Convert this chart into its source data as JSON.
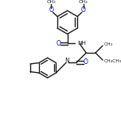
{
  "bg_color": "#ffffff",
  "lc": "#1a1a1a",
  "oc": "#0000cc",
  "lw": 1.0,
  "figsize": [
    1.52,
    1.5
  ],
  "dpi": 100,
  "xlim": [
    -1.0,
    9.0
  ],
  "ylim": [
    -1.0,
    9.5
  ]
}
